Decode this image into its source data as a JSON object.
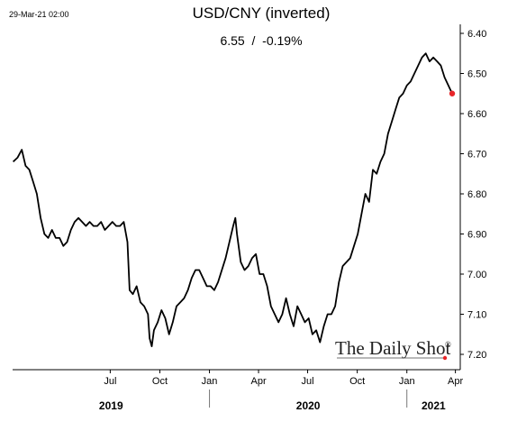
{
  "chart_data": {
    "type": "line",
    "title": "USD/CNY (inverted)",
    "date_label": "29-Mar-21 02:00",
    "current_readout": "6.55  /  -0.19%",
    "watermark": "The Daily Shot",
    "watermark_mark": "®",
    "y_axis": {
      "side": "right",
      "inverted": true,
      "ylim": [
        6.4,
        7.2
      ],
      "ticks": [
        "6.40",
        "6.50",
        "6.60",
        "6.70",
        "6.80",
        "6.90",
        "7.00",
        "7.10",
        "7.20"
      ]
    },
    "x_axis": {
      "month_ticks": [
        "Jul",
        "Oct",
        "Jan",
        "Apr",
        "Jul",
        "Oct",
        "Jan",
        "Apr"
      ],
      "month_dates": [
        "2019-07-01",
        "2019-10-01",
        "2020-01-01",
        "2020-04-01",
        "2020-07-01",
        "2020-10-01",
        "2021-01-01",
        "2021-04-01"
      ],
      "years": [
        "2019",
        "2020",
        "2021"
      ],
      "xlim": [
        "2019-01-01",
        "2021-04-10"
      ],
      "year_dividers": [
        "2020-01-01",
        "2021-01-01"
      ]
    },
    "series": [
      {
        "color": "#000000",
        "last_point_color": "#e8262a",
        "points": [
          [
            "2019-01-02",
            6.72
          ],
          [
            "2019-01-10",
            6.71
          ],
          [
            "2019-01-18",
            6.69
          ],
          [
            "2019-01-25",
            6.73
          ],
          [
            "2019-02-01",
            6.74
          ],
          [
            "2019-02-08",
            6.77
          ],
          [
            "2019-02-15",
            6.8
          ],
          [
            "2019-02-22",
            6.86
          ],
          [
            "2019-03-01",
            6.9
          ],
          [
            "2019-03-08",
            6.91
          ],
          [
            "2019-03-15",
            6.89
          ],
          [
            "2019-03-22",
            6.91
          ],
          [
            "2019-03-29",
            6.91
          ],
          [
            "2019-04-05",
            6.93
          ],
          [
            "2019-04-12",
            6.92
          ],
          [
            "2019-04-19",
            6.89
          ],
          [
            "2019-04-26",
            6.87
          ],
          [
            "2019-05-03",
            6.86
          ],
          [
            "2019-05-10",
            6.87
          ],
          [
            "2019-05-17",
            6.88
          ],
          [
            "2019-05-24",
            6.87
          ],
          [
            "2019-05-31",
            6.88
          ],
          [
            "2019-06-07",
            6.88
          ],
          [
            "2019-06-14",
            6.87
          ],
          [
            "2019-06-21",
            6.89
          ],
          [
            "2019-06-28",
            6.88
          ],
          [
            "2019-07-05",
            6.87
          ],
          [
            "2019-07-12",
            6.88
          ],
          [
            "2019-07-19",
            6.88
          ],
          [
            "2019-07-26",
            6.87
          ],
          [
            "2019-08-02",
            6.92
          ],
          [
            "2019-08-06",
            7.04
          ],
          [
            "2019-08-12",
            7.05
          ],
          [
            "2019-08-19",
            7.03
          ],
          [
            "2019-08-26",
            7.07
          ],
          [
            "2019-09-02",
            7.08
          ],
          [
            "2019-09-09",
            7.1
          ],
          [
            "2019-09-12",
            7.16
          ],
          [
            "2019-09-16",
            7.18
          ],
          [
            "2019-09-20",
            7.14
          ],
          [
            "2019-09-27",
            7.12
          ],
          [
            "2019-10-04",
            7.09
          ],
          [
            "2019-10-11",
            7.11
          ],
          [
            "2019-10-18",
            7.15
          ],
          [
            "2019-10-25",
            7.12
          ],
          [
            "2019-11-01",
            7.08
          ],
          [
            "2019-11-08",
            7.07
          ],
          [
            "2019-11-15",
            7.06
          ],
          [
            "2019-11-22",
            7.04
          ],
          [
            "2019-11-29",
            7.01
          ],
          [
            "2019-12-06",
            6.99
          ],
          [
            "2019-12-13",
            6.99
          ],
          [
            "2019-12-20",
            7.01
          ],
          [
            "2019-12-27",
            7.03
          ],
          [
            "2020-01-03",
            7.03
          ],
          [
            "2020-01-10",
            7.04
          ],
          [
            "2020-01-17",
            7.02
          ],
          [
            "2020-01-24",
            6.99
          ],
          [
            "2020-01-31",
            6.96
          ],
          [
            "2020-02-07",
            6.92
          ],
          [
            "2020-02-14",
            6.88
          ],
          [
            "2020-02-18",
            6.86
          ],
          [
            "2020-02-21",
            6.9
          ],
          [
            "2020-02-28",
            6.97
          ],
          [
            "2020-03-06",
            6.99
          ],
          [
            "2020-03-13",
            6.98
          ],
          [
            "2020-03-20",
            6.96
          ],
          [
            "2020-03-27",
            6.95
          ],
          [
            "2020-04-03",
            7.0
          ],
          [
            "2020-04-10",
            7.0
          ],
          [
            "2020-04-17",
            7.03
          ],
          [
            "2020-04-24",
            7.08
          ],
          [
            "2020-05-01",
            7.1
          ],
          [
            "2020-05-08",
            7.12
          ],
          [
            "2020-05-15",
            7.1
          ],
          [
            "2020-05-22",
            7.06
          ],
          [
            "2020-05-29",
            7.1
          ],
          [
            "2020-06-05",
            7.13
          ],
          [
            "2020-06-12",
            7.08
          ],
          [
            "2020-06-19",
            7.1
          ],
          [
            "2020-06-26",
            7.12
          ],
          [
            "2020-07-03",
            7.11
          ],
          [
            "2020-07-10",
            7.15
          ],
          [
            "2020-07-17",
            7.14
          ],
          [
            "2020-07-24",
            7.17
          ],
          [
            "2020-07-31",
            7.13
          ],
          [
            "2020-08-07",
            7.1
          ],
          [
            "2020-08-14",
            7.1
          ],
          [
            "2020-08-21",
            7.08
          ],
          [
            "2020-08-28",
            7.02
          ],
          [
            "2020-09-04",
            6.98
          ],
          [
            "2020-09-11",
            6.97
          ],
          [
            "2020-09-18",
            6.96
          ],
          [
            "2020-09-25",
            6.93
          ],
          [
            "2020-10-02",
            6.9
          ],
          [
            "2020-10-09",
            6.85
          ],
          [
            "2020-10-16",
            6.8
          ],
          [
            "2020-10-23",
            6.82
          ],
          [
            "2020-10-30",
            6.74
          ],
          [
            "2020-11-06",
            6.75
          ],
          [
            "2020-11-13",
            6.72
          ],
          [
            "2020-11-20",
            6.7
          ],
          [
            "2020-11-27",
            6.65
          ],
          [
            "2020-12-04",
            6.62
          ],
          [
            "2020-12-11",
            6.59
          ],
          [
            "2020-12-18",
            6.56
          ],
          [
            "2020-12-25",
            6.55
          ],
          [
            "2021-01-01",
            6.53
          ],
          [
            "2021-01-08",
            6.52
          ],
          [
            "2021-01-15",
            6.5
          ],
          [
            "2021-01-22",
            6.48
          ],
          [
            "2021-01-29",
            6.46
          ],
          [
            "2021-02-05",
            6.45
          ],
          [
            "2021-02-12",
            6.47
          ],
          [
            "2021-02-19",
            6.46
          ],
          [
            "2021-02-26",
            6.47
          ],
          [
            "2021-03-05",
            6.48
          ],
          [
            "2021-03-12",
            6.51
          ],
          [
            "2021-03-19",
            6.53
          ],
          [
            "2021-03-26",
            6.55
          ]
        ]
      }
    ]
  }
}
